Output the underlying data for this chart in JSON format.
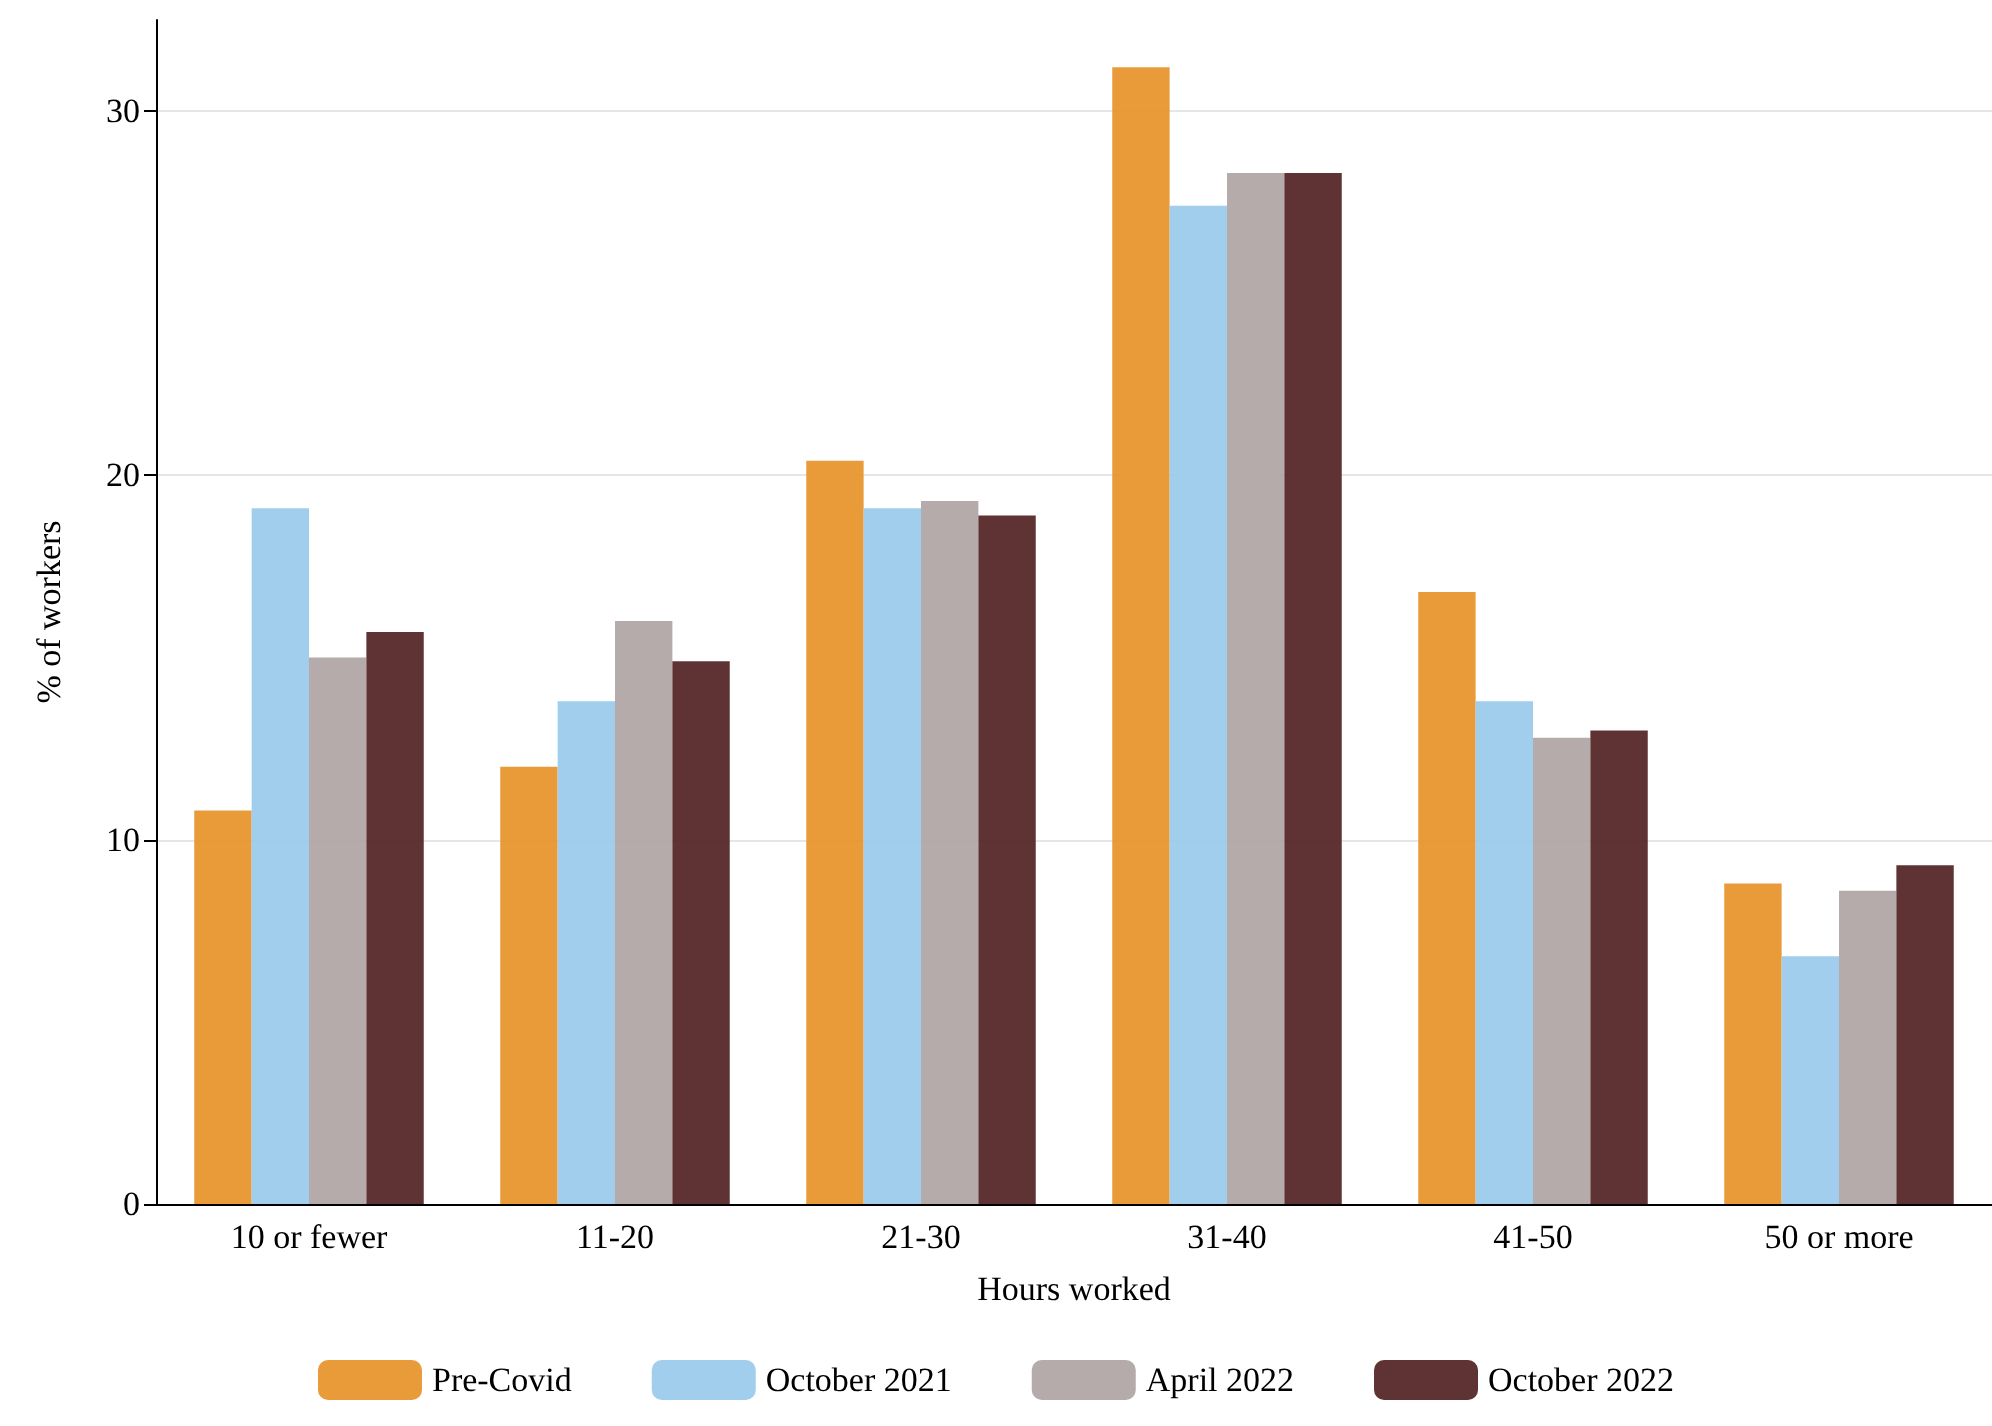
{
  "chart_data": {
    "type": "bar",
    "xlabel": "Hours worked",
    "ylabel": "% of workers",
    "categories": [
      "10 or fewer",
      "11-20",
      "21-30",
      "31-40",
      "41-50",
      "50 or more"
    ],
    "series": [
      {
        "name": "Pre-Covid",
        "color": "#e8962f",
        "values": [
          10.8,
          12.0,
          20.4,
          31.2,
          16.8,
          8.8
        ]
      },
      {
        "name": "October 2021",
        "color": "#9bcbeb",
        "values": [
          19.1,
          13.8,
          19.1,
          27.4,
          13.8,
          6.8
        ]
      },
      {
        "name": "April 2022",
        "color": "#b0a6a5",
        "values": [
          15.0,
          16.0,
          19.3,
          28.3,
          12.8,
          8.6
        ]
      },
      {
        "name": "October 2022",
        "color": "#562828",
        "values": [
          15.7,
          14.9,
          18.9,
          28.3,
          13.0,
          9.3
        ]
      }
    ],
    "ylim": [
      0,
      32.5
    ],
    "yticks": [
      0,
      10,
      20,
      30
    ],
    "grid": "y",
    "legend": "bottom"
  }
}
